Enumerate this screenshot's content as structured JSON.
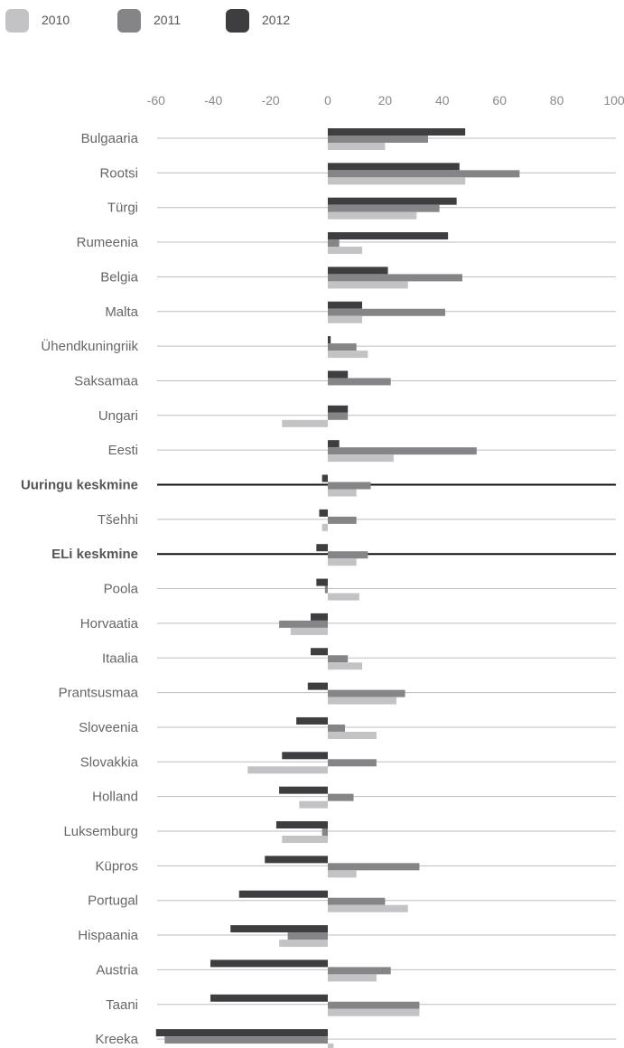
{
  "colors": {
    "2010": "#c3c3c5",
    "2011": "#858587",
    "2012": "#3e3e40",
    "grid": "#bdbdbd",
    "highlight": "#111111"
  },
  "chart_data": {
    "type": "bar",
    "orientation": "horizontal",
    "title": "",
    "xlabel": "",
    "ylabel": "",
    "xlim": [
      -60,
      100
    ],
    "xticks": [
      "-60",
      "-40",
      "-20",
      "0",
      "20",
      "40",
      "60",
      "80",
      "100"
    ],
    "legend_position": "top-left",
    "categories": [
      "Bulgaaria",
      "Rootsi",
      "Türgi",
      "Rumeenia",
      "Belgia",
      "Malta",
      "Ühendkuningriik",
      "Saksamaa",
      "Ungari",
      "Eesti",
      "Uuringu keskmine",
      "Tšehhi",
      "ELi keskmine",
      "Poola",
      "Horvaatia",
      "Itaalia",
      "Prantsusmaa",
      "Sloveenia",
      "Slovakkia",
      "Holland",
      "Luksemburg",
      "Küpros",
      "Portugal",
      "Hispaania",
      "Austria",
      "Taani",
      "Kreeka"
    ],
    "highlighted": [
      "Uuringu keskmine",
      "ELi keskmine"
    ],
    "series": [
      {
        "name": "2010",
        "values": [
          20,
          48,
          31,
          12,
          28,
          12,
          14,
          0,
          -16,
          23,
          10,
          -2,
          10,
          11,
          -13,
          12,
          24,
          17,
          -28,
          -10,
          -16,
          10,
          28,
          -17,
          17,
          32,
          2
        ]
      },
      {
        "name": "2011",
        "values": [
          35,
          67,
          39,
          4,
          47,
          41,
          10,
          22,
          7,
          52,
          15,
          10,
          14,
          -1,
          -17,
          7,
          27,
          6,
          17,
          9,
          -2,
          32,
          20,
          -14,
          22,
          32,
          -57
        ]
      },
      {
        "name": "2012",
        "values": [
          48,
          46,
          45,
          42,
          21,
          12,
          1,
          7,
          7,
          4,
          -2,
          -3,
          -4,
          -4,
          -6,
          -6,
          -7,
          -11,
          -16,
          -17,
          -18,
          -22,
          -31,
          -34,
          -41,
          -41,
          -60
        ]
      }
    ]
  }
}
